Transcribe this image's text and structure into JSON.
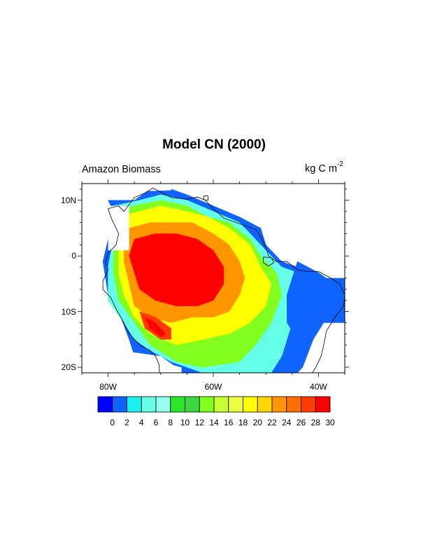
{
  "title": "Model CN (2000)",
  "left_string": "Amazon Biomass",
  "units": {
    "main": "kg C m",
    "superscript": "-2"
  },
  "map_extent": {
    "lon_min": -85,
    "lon_max": -35,
    "lat_min": -21,
    "lat_max": 13
  },
  "lat_ticks": [
    {
      "value": 10,
      "label": "10N"
    },
    {
      "value": 0,
      "label": "0"
    },
    {
      "value": -10,
      "label": "10S"
    },
    {
      "value": -20,
      "label": "20S"
    }
  ],
  "lon_ticks": [
    {
      "value": -80,
      "label": "80W"
    },
    {
      "value": -60,
      "label": "60W"
    },
    {
      "value": -40,
      "label": "40W"
    }
  ],
  "colorbar": {
    "labels": [
      "0",
      "2",
      "4",
      "6",
      "8",
      "10",
      "12",
      "14",
      "16",
      "18",
      "20",
      "22",
      "24",
      "26",
      "28",
      "30"
    ],
    "colors": [
      "#0000ff",
      "#0f64ff",
      "#1ef0f0",
      "#64ffe6",
      "#96fff0",
      "#28e628",
      "#3cd73c",
      "#82ff1e",
      "#c8ff32",
      "#ebff3c",
      "#ffff00",
      "#ffd700",
      "#ff9600",
      "#ff6e00",
      "#ff3c00",
      "#ff0000"
    ]
  },
  "chart_data": {
    "type": "heatmap",
    "variable": "Amazon Biomass",
    "units": "kg C m-2",
    "levels": [
      0,
      2,
      4,
      6,
      8,
      10,
      12,
      14,
      16,
      18,
      20,
      22,
      24,
      26,
      28,
      30
    ],
    "regions": [
      {
        "class": 1,
        "poly": [
          [
            -80,
            10
          ],
          [
            -75,
            10
          ],
          [
            -72,
            12
          ],
          [
            -68,
            12
          ],
          [
            -65,
            11
          ],
          [
            -60,
            9
          ],
          [
            -55,
            7
          ],
          [
            -51,
            5
          ],
          [
            -50,
            2
          ],
          [
            -47,
            -1
          ],
          [
            -44,
            -2
          ],
          [
            -40,
            -4
          ],
          [
            -35,
            -4
          ],
          [
            -35,
            -12
          ],
          [
            -39,
            -12
          ],
          [
            -41,
            -15
          ],
          [
            -43,
            -20
          ],
          [
            -45,
            -22
          ],
          [
            -66,
            -22
          ],
          [
            -66,
            -20
          ],
          [
            -70,
            -19
          ],
          [
            -75,
            -18
          ],
          [
            -76,
            -15
          ],
          [
            -78,
            -10
          ],
          [
            -80,
            -7
          ],
          [
            -81,
            -1
          ],
          [
            -80,
            3
          ],
          [
            -79,
            8
          ]
        ]
      },
      {
        "class": 3,
        "poly": [
          [
            -79,
            9
          ],
          [
            -74,
            10
          ],
          [
            -70,
            11
          ],
          [
            -65,
            10
          ],
          [
            -60,
            8
          ],
          [
            -55,
            6
          ],
          [
            -52,
            3
          ],
          [
            -50,
            1
          ],
          [
            -47,
            -2
          ],
          [
            -44,
            -3
          ],
          [
            -43,
            -6
          ],
          [
            -45,
            -12
          ],
          [
            -47,
            -18
          ],
          [
            -49,
            -21
          ],
          [
            -62,
            -21
          ],
          [
            -65,
            -20
          ],
          [
            -68,
            -19
          ],
          [
            -72,
            -17
          ],
          [
            -75,
            -15
          ],
          [
            -77,
            -12
          ],
          [
            -80,
            -8
          ],
          [
            -80,
            -2
          ],
          [
            -79,
            3
          ]
        ]
      },
      {
        "class": 7,
        "poly": [
          [
            -79,
            8
          ],
          [
            -75,
            9
          ],
          [
            -70,
            10
          ],
          [
            -65,
            9
          ],
          [
            -61,
            7
          ],
          [
            -57,
            6
          ],
          [
            -53,
            3
          ],
          [
            -51,
            0
          ],
          [
            -48,
            -3
          ],
          [
            -47,
            -7
          ],
          [
            -49,
            -12
          ],
          [
            -52,
            -16
          ],
          [
            -55,
            -19
          ],
          [
            -62,
            -20
          ],
          [
            -67,
            -19
          ],
          [
            -72,
            -16
          ],
          [
            -75,
            -12
          ],
          [
            -78,
            -8
          ],
          [
            -79,
            -3
          ],
          [
            -79,
            3
          ]
        ]
      },
      {
        "class": 10,
        "poly": [
          [
            -78,
            7
          ],
          [
            -74,
            8
          ],
          [
            -70,
            9
          ],
          [
            -65,
            8
          ],
          [
            -61,
            7
          ],
          [
            -57,
            5
          ],
          [
            -53,
            2
          ],
          [
            -51,
            -2
          ],
          [
            -49,
            -5
          ],
          [
            -50,
            -9
          ],
          [
            -53,
            -12
          ],
          [
            -57,
            -14
          ],
          [
            -62,
            -15
          ],
          [
            -67,
            -16
          ],
          [
            -72,
            -14
          ],
          [
            -75,
            -11
          ],
          [
            -77,
            -7
          ],
          [
            -78,
            -3
          ],
          [
            -78,
            2
          ]
        ]
      },
      {
        "class": 12,
        "poly": [
          [
            -76,
            5
          ],
          [
            -72,
            6
          ],
          [
            -68,
            6
          ],
          [
            -64,
            6
          ],
          [
            -60,
            4
          ],
          [
            -57,
            2
          ],
          [
            -55,
            -1
          ],
          [
            -54,
            -4
          ],
          [
            -55,
            -7
          ],
          [
            -57,
            -10
          ],
          [
            -60,
            -11
          ],
          [
            -64,
            -11
          ],
          [
            -68,
            -12
          ],
          [
            -72,
            -11
          ],
          [
            -75,
            -9
          ],
          [
            -76,
            -5
          ],
          [
            -77,
            -1
          ],
          [
            -77,
            2
          ]
        ]
      },
      {
        "class": 15,
        "poly": [
          [
            -75,
            3
          ],
          [
            -71,
            4
          ],
          [
            -67,
            4
          ],
          [
            -63,
            3
          ],
          [
            -60,
            1
          ],
          [
            -58,
            -2
          ],
          [
            -58,
            -5
          ],
          [
            -60,
            -8
          ],
          [
            -63,
            -9
          ],
          [
            -67,
            -9
          ],
          [
            -71,
            -8
          ],
          [
            -74,
            -6
          ],
          [
            -75,
            -3
          ],
          [
            -76,
            0
          ]
        ]
      },
      {
        "class": 14,
        "poly": [
          [
            -74,
            -10
          ],
          [
            -71,
            -11
          ],
          [
            -68,
            -13
          ],
          [
            -68,
            -15
          ],
          [
            -70,
            -15
          ],
          [
            -73,
            -13
          ]
        ]
      },
      {
        "class": 15,
        "poly": [
          [
            -73,
            -11
          ],
          [
            -71,
            -12
          ],
          [
            -69,
            -14
          ],
          [
            -70,
            -14.5
          ],
          [
            -72,
            -13
          ]
        ]
      },
      {
        "class": 1,
        "poly": [
          [
            -44,
            -1
          ],
          [
            -40,
            -3
          ],
          [
            -37,
            -5
          ],
          [
            -37,
            -8
          ],
          [
            -39,
            -11
          ],
          [
            -41,
            -14
          ],
          [
            -44,
            -15
          ],
          [
            -46,
            -12
          ],
          [
            -46,
            -7
          ],
          [
            -45,
            -4
          ]
        ]
      }
    ],
    "white_masks": [
      {
        "poly": [
          [
            -85,
            13
          ],
          [
            -85,
            8
          ],
          [
            -80,
            8
          ],
          [
            -80,
            13
          ]
        ]
      },
      {
        "poly": [
          [
            -85,
            13
          ],
          [
            -82,
            13
          ],
          [
            -82,
            -7
          ],
          [
            -85,
            -7
          ]
        ]
      },
      {
        "poly": [
          [
            -80,
            9
          ],
          [
            -76,
            9
          ],
          [
            -76,
            1
          ],
          [
            -80,
            1
          ]
        ]
      },
      {
        "poly": [
          [
            -85,
            -21
          ],
          [
            -85,
            -16
          ],
          [
            -70,
            -18
          ],
          [
            -67,
            -20
          ],
          [
            -66,
            -21
          ]
        ]
      },
      {
        "poly": [
          [
            -35,
            13
          ],
          [
            -35,
            -3
          ],
          [
            -44,
            0
          ],
          [
            -52,
            6
          ],
          [
            -59,
            9.5
          ],
          [
            -65,
            13
          ]
        ]
      },
      {
        "poly": [
          [
            -85,
            13
          ],
          [
            -68,
            13
          ],
          [
            -68,
            11.8
          ],
          [
            -77,
            11.5
          ],
          [
            -82,
            10.5
          ],
          [
            -85,
            10.5
          ]
        ]
      },
      {
        "poly": [
          [
            -35,
            -12
          ],
          [
            -35,
            -21
          ],
          [
            -40,
            -21
          ],
          [
            -40,
            -17
          ],
          [
            -38,
            -13
          ]
        ]
      }
    ]
  }
}
